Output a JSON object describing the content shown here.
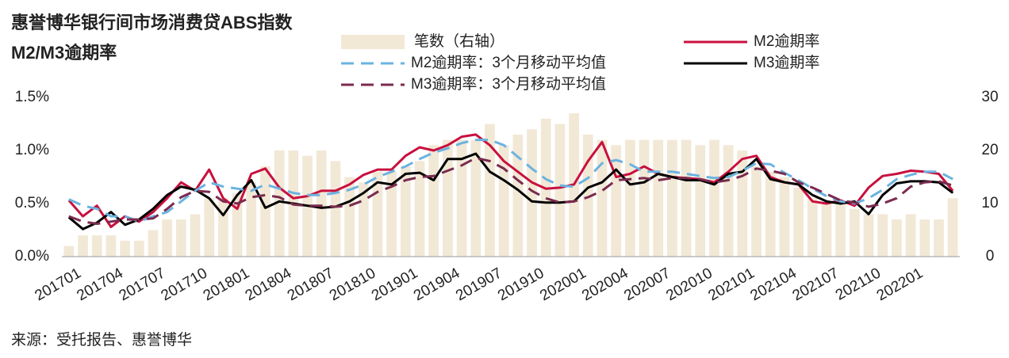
{
  "chart_data": {
    "type": "combo",
    "title": "惠誉博华银行间市场消费贷ABS指数",
    "subtitle": "M2/M3逾期率",
    "source": "来源：受托报告、惠誉博华",
    "categories": [
      "201701",
      null,
      null,
      "201704",
      null,
      null,
      "201707",
      null,
      null,
      "201710",
      null,
      null,
      "201801",
      null,
      null,
      "201804",
      null,
      null,
      "201807",
      null,
      null,
      "201810",
      null,
      null,
      "201901",
      null,
      null,
      "201904",
      null,
      null,
      "201907",
      null,
      null,
      "201910",
      null,
      null,
      "202001",
      null,
      null,
      "202004",
      null,
      null,
      "202007",
      null,
      null,
      "202010",
      null,
      null,
      "202101",
      null,
      null,
      "202104",
      null,
      null,
      "202107",
      null,
      null,
      "202110",
      null,
      null,
      "202201",
      null,
      null,
      null
    ],
    "ylim": [
      0,
      1.5
    ],
    "yticks": [
      {
        "value": 0,
        "label": "0.0%"
      },
      {
        "value": 0.5,
        "label": "0.5%"
      },
      {
        "value": 1.0,
        "label": "1.0%"
      },
      {
        "value": 1.5,
        "label": "1.5%"
      }
    ],
    "y2lim": [
      0,
      30
    ],
    "y2ticks": [
      0,
      10,
      20,
      30
    ],
    "series": [
      {
        "name": "笔数（右轴）",
        "type": "bar",
        "axis": "y2",
        "color": "#f2e8d6",
        "values": [
          2,
          4,
          4,
          4,
          3,
          3,
          5,
          7,
          7,
          8,
          11,
          11,
          12,
          14,
          17,
          20,
          20,
          19,
          20,
          18,
          15,
          14,
          16,
          16,
          17,
          18,
          21,
          22,
          22,
          22,
          25,
          21,
          23,
          24,
          26,
          25,
          27,
          23,
          22,
          21,
          22,
          22,
          22,
          22,
          22,
          21,
          22,
          21,
          20,
          17,
          16,
          15,
          13,
          11,
          10,
          10,
          9,
          8,
          8,
          7,
          8,
          7,
          7,
          11
        ]
      },
      {
        "name": "M2逾期率",
        "type": "line",
        "color": "#c8103e",
        "dashed": false,
        "values": [
          0.53,
          0.38,
          0.48,
          0.28,
          0.38,
          0.33,
          0.42,
          0.55,
          0.7,
          0.62,
          0.82,
          0.55,
          0.45,
          0.78,
          0.83,
          0.65,
          0.55,
          0.57,
          0.62,
          0.62,
          0.68,
          0.77,
          0.82,
          0.82,
          0.95,
          1.03,
          1.0,
          1.05,
          1.13,
          1.15,
          1.05,
          0.9,
          0.8,
          0.7,
          0.64,
          0.65,
          0.68,
          0.9,
          1.08,
          0.75,
          0.78,
          0.85,
          0.78,
          0.75,
          0.74,
          0.73,
          0.7,
          0.8,
          0.92,
          0.95,
          0.75,
          0.7,
          0.68,
          0.52,
          0.5,
          0.53,
          0.48,
          0.65,
          0.76,
          0.78,
          0.81,
          0.8,
          0.78,
          0.62
        ]
      },
      {
        "name": "M3逾期率",
        "type": "line",
        "color": "#000000",
        "dashed": false,
        "values": [
          0.37,
          0.26,
          0.32,
          0.42,
          0.3,
          0.35,
          0.45,
          0.58,
          0.66,
          0.63,
          0.55,
          0.39,
          0.58,
          0.72,
          0.46,
          0.52,
          0.5,
          0.48,
          0.46,
          0.47,
          0.52,
          0.6,
          0.7,
          0.68,
          0.78,
          0.79,
          0.72,
          0.92,
          0.92,
          0.97,
          0.8,
          0.72,
          0.63,
          0.52,
          0.51,
          0.51,
          0.52,
          0.65,
          0.7,
          0.82,
          0.68,
          0.7,
          0.78,
          0.75,
          0.72,
          0.72,
          0.68,
          0.78,
          0.8,
          0.92,
          0.73,
          0.7,
          0.68,
          0.58,
          0.52,
          0.5,
          0.52,
          0.4,
          0.58,
          0.69,
          0.71,
          0.71,
          0.7,
          0.6
        ]
      },
      {
        "name": "M2逾期率：3个月移动平均值",
        "type": "line",
        "color": "#6bb3e0",
        "dashed": true,
        "values": [
          0.54,
          0.48,
          0.45,
          0.38,
          0.38,
          0.33,
          0.38,
          0.42,
          0.52,
          0.62,
          0.7,
          0.66,
          0.64,
          0.62,
          0.68,
          0.64,
          0.6,
          0.58,
          0.58,
          0.6,
          0.63,
          0.68,
          0.75,
          0.8,
          0.85,
          0.92,
          0.98,
          1.02,
          1.07,
          1.1,
          1.1,
          1.05,
          0.94,
          0.83,
          0.73,
          0.67,
          0.66,
          0.74,
          0.88,
          0.91,
          0.87,
          0.8,
          0.8,
          0.8,
          0.78,
          0.76,
          0.74,
          0.75,
          0.81,
          0.88,
          0.87,
          0.79,
          0.72,
          0.64,
          0.57,
          0.52,
          0.5,
          0.55,
          0.63,
          0.73,
          0.77,
          0.8,
          0.8,
          0.73
        ]
      },
      {
        "name": "M3逾期率：3个月移动平均值",
        "type": "line",
        "color": "#7a2b4e",
        "dashed": true,
        "values": [
          0.38,
          0.33,
          0.31,
          0.33,
          0.35,
          0.35,
          0.36,
          0.45,
          0.56,
          0.62,
          0.61,
          0.52,
          0.5,
          0.56,
          0.58,
          0.56,
          0.49,
          0.48,
          0.48,
          0.47,
          0.48,
          0.53,
          0.61,
          0.66,
          0.72,
          0.75,
          0.76,
          0.81,
          0.86,
          0.93,
          0.9,
          0.83,
          0.72,
          0.62,
          0.55,
          0.51,
          0.52,
          0.56,
          0.62,
          0.72,
          0.73,
          0.74,
          0.72,
          0.74,
          0.74,
          0.73,
          0.7,
          0.72,
          0.76,
          0.83,
          0.81,
          0.78,
          0.7,
          0.65,
          0.59,
          0.53,
          0.51,
          0.47,
          0.5,
          0.55,
          0.66,
          0.7,
          0.71,
          0.67
        ]
      }
    ]
  }
}
